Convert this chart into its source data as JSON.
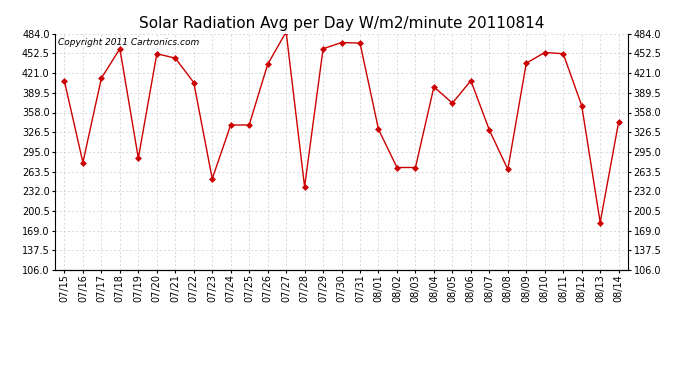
{
  "title": "Solar Radiation Avg per Day W/m2/minute 20110814",
  "copyright": "Copyright 2011 Cartronics.com",
  "dates": [
    "07/15",
    "07/16",
    "07/17",
    "07/18",
    "07/19",
    "07/20",
    "07/21",
    "07/22",
    "07/23",
    "07/24",
    "07/25",
    "07/26",
    "07/27",
    "07/28",
    "07/29",
    "07/30",
    "07/31",
    "08/01",
    "08/02",
    "08/03",
    "08/04",
    "08/05",
    "08/06",
    "08/07",
    "08/08",
    "08/09",
    "08/10",
    "08/11",
    "08/12",
    "08/13",
    "08/14"
  ],
  "values": [
    408,
    278,
    413,
    460,
    285,
    452,
    445,
    406,
    252,
    338,
    338,
    435,
    487,
    239,
    460,
    470,
    469,
    331,
    270,
    270,
    399,
    373,
    409,
    330,
    267,
    437,
    454,
    452,
    369,
    182,
    343
  ],
  "y_ticks": [
    106.0,
    137.5,
    169.0,
    200.5,
    232.0,
    263.5,
    295.0,
    326.5,
    358.0,
    389.5,
    421.0,
    452.5,
    484.0
  ],
  "line_color": "#cc0000",
  "marker": "D",
  "marker_size": 3,
  "bg_color": "#ffffff",
  "grid_color": "#cccccc",
  "title_fontsize": 11,
  "copyright_fontsize": 6.5,
  "tick_fontsize": 7,
  "ytick_fontsize": 7
}
